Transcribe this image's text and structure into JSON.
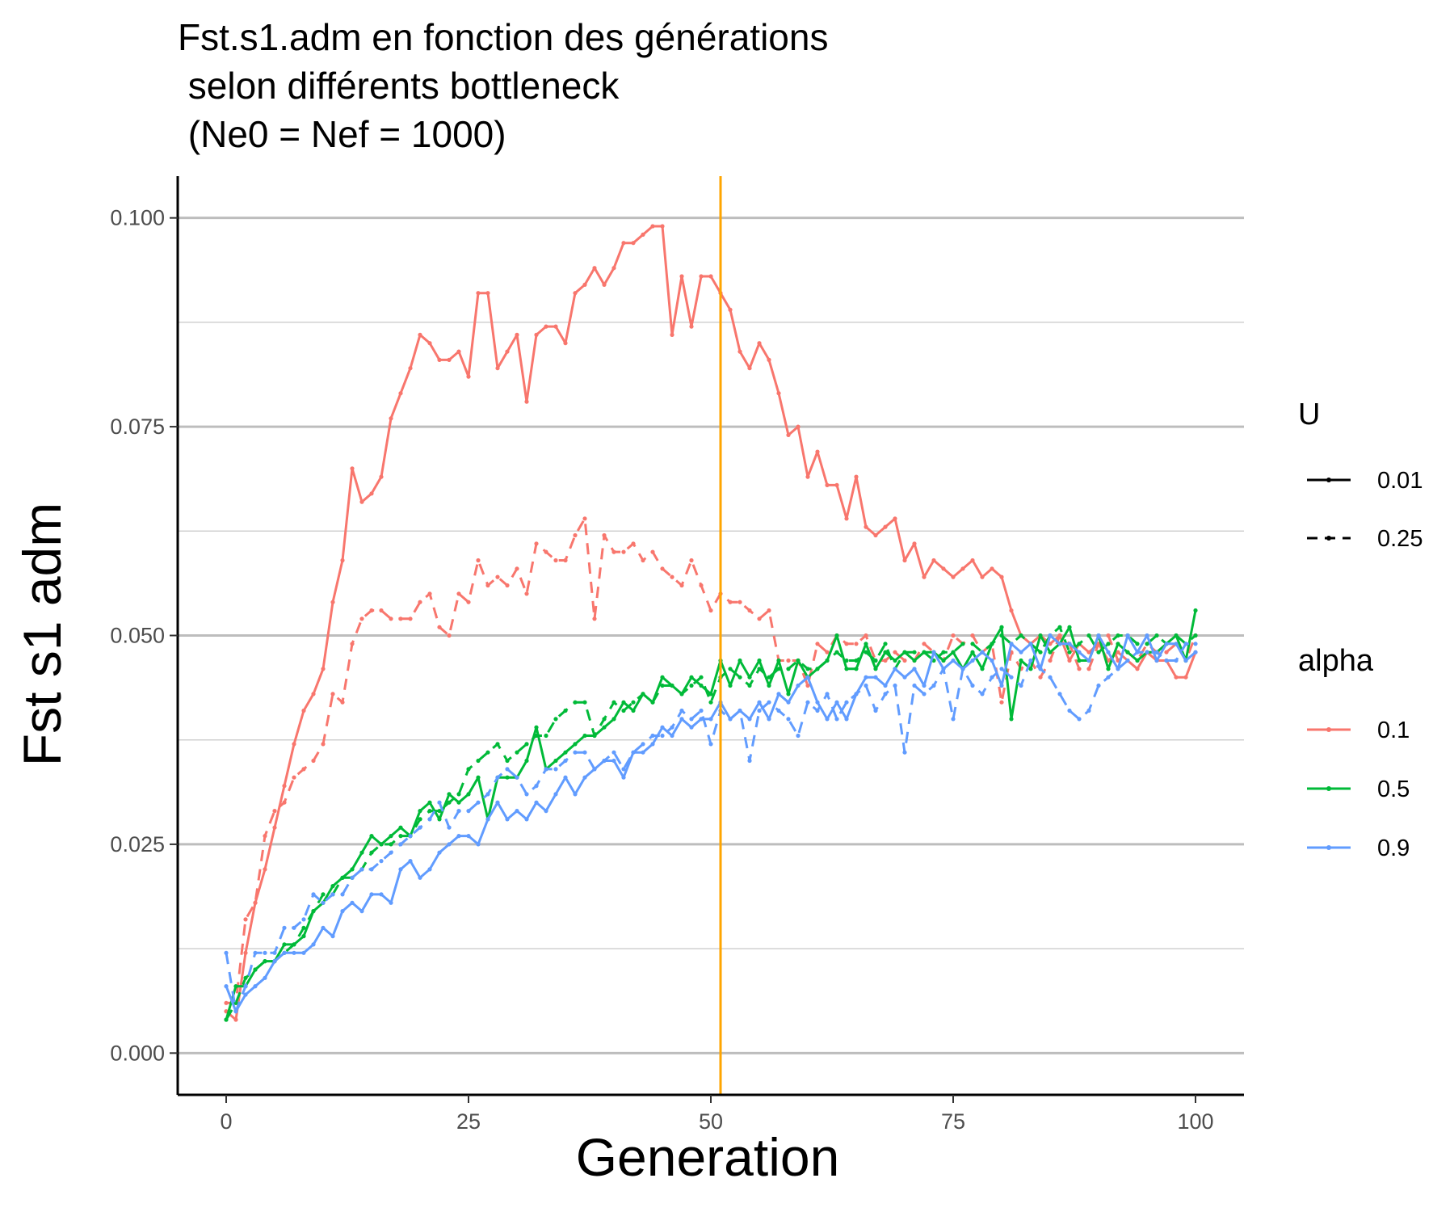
{
  "chart_data": {
    "type": "line",
    "title": [
      "Fst.s1.adm en fonction des générations",
      " selon différents bottleneck",
      " (Ne0 = Nef = 1000)"
    ],
    "xlabel": "Generation",
    "ylabel": "Fst s1 adm",
    "xlim": [
      -5,
      105
    ],
    "ylim": [
      -0.005,
      0.105
    ],
    "x_ticks": [
      0,
      25,
      50,
      75,
      100
    ],
    "x_tick_labels": [
      "0",
      "25",
      "50",
      "75",
      "100"
    ],
    "y_ticks": [
      0,
      0.025,
      0.05,
      0.075,
      0.1
    ],
    "y_tick_labels": [
      "0.000",
      "0.025",
      "0.050",
      "0.075",
      "0.100"
    ],
    "y_minor_ticks": [
      0.0125,
      0.0375,
      0.0625,
      0.0875
    ],
    "grid": "horizontal",
    "vline": {
      "x": 51,
      "color": "#FFA500"
    },
    "legend_placement": "right",
    "legend_linetype": {
      "title": "U",
      "entries": [
        {
          "label": "0.01",
          "dash": "solid"
        },
        {
          "label": "0.25",
          "dash": "dashed"
        }
      ]
    },
    "legend_color": {
      "title": "alpha",
      "entries": [
        {
          "label": "0.1",
          "color": "#F8766D"
        },
        {
          "label": "0.5",
          "color": "#00BA38"
        },
        {
          "label": "0.9",
          "color": "#619CFF"
        }
      ]
    },
    "x_start": 0,
    "x_step": 1,
    "series": [
      {
        "alpha": "0.1",
        "U": "0.01",
        "color": "#F8766D",
        "dash": "solid",
        "values": [
          0.005,
          0.004,
          0.012,
          0.018,
          0.022,
          0.027,
          0.032,
          0.037,
          0.041,
          0.043,
          0.046,
          0.054,
          0.059,
          0.07,
          0.066,
          0.067,
          0.069,
          0.076,
          0.079,
          0.082,
          0.086,
          0.085,
          0.083,
          0.083,
          0.084,
          0.081,
          0.091,
          0.091,
          0.082,
          0.084,
          0.086,
          0.078,
          0.086,
          0.087,
          0.087,
          0.085,
          0.091,
          0.092,
          0.094,
          0.092,
          0.094,
          0.097,
          0.097,
          0.098,
          0.099,
          0.099,
          0.086,
          0.093,
          0.087,
          0.093,
          0.093,
          0.091,
          0.089,
          0.084,
          0.082,
          0.085,
          0.083,
          0.079,
          0.074,
          0.075,
          0.069,
          0.072,
          0.068,
          0.068,
          0.064,
          0.069,
          0.063,
          0.062,
          0.063,
          0.064,
          0.059,
          0.061,
          0.057,
          0.059,
          0.058,
          0.057,
          0.058,
          0.059,
          0.057,
          0.058,
          0.057,
          0.053,
          0.05,
          0.049,
          0.05,
          0.049,
          0.05,
          0.047,
          0.049,
          0.048,
          0.049,
          0.047,
          0.048,
          0.047,
          0.046,
          0.048,
          0.047,
          0.047,
          0.045,
          0.045,
          0.048
        ]
      },
      {
        "alpha": "0.1",
        "U": "0.25",
        "color": "#F8766D",
        "dash": "dashed",
        "values": [
          0.006,
          0.006,
          0.016,
          0.018,
          0.026,
          0.029,
          0.03,
          0.033,
          0.034,
          0.035,
          0.037,
          0.043,
          0.042,
          0.049,
          0.052,
          0.053,
          0.053,
          0.052,
          0.052,
          0.052,
          0.054,
          0.055,
          0.051,
          0.05,
          0.055,
          0.054,
          0.059,
          0.056,
          0.057,
          0.056,
          0.058,
          0.055,
          0.061,
          0.06,
          0.059,
          0.059,
          0.062,
          0.064,
          0.052,
          0.062,
          0.06,
          0.06,
          0.061,
          0.059,
          0.06,
          0.058,
          0.057,
          0.056,
          0.059,
          0.056,
          0.053,
          0.055,
          0.054,
          0.054,
          0.053,
          0.052,
          0.053,
          0.047,
          0.047,
          0.047,
          0.044,
          0.049,
          0.048,
          0.05,
          0.049,
          0.049,
          0.05,
          0.047,
          0.047,
          0.048,
          0.047,
          0.047,
          0.049,
          0.048,
          0.047,
          0.05,
          0.049,
          0.05,
          0.048,
          0.049,
          0.042,
          0.048,
          0.046,
          0.047,
          0.045,
          0.047,
          0.05,
          0.049,
          0.046,
          0.046,
          0.049,
          0.05,
          0.047,
          0.048,
          0.047,
          0.049,
          0.048,
          0.048,
          0.049,
          0.047,
          0.05
        ]
      },
      {
        "alpha": "0.5",
        "U": "0.01",
        "color": "#00BA38",
        "dash": "solid",
        "values": [
          0.004,
          0.008,
          0.008,
          0.01,
          0.011,
          0.011,
          0.013,
          0.013,
          0.014,
          0.017,
          0.018,
          0.02,
          0.021,
          0.022,
          0.024,
          0.026,
          0.025,
          0.026,
          0.027,
          0.026,
          0.029,
          0.03,
          0.028,
          0.031,
          0.03,
          0.031,
          0.033,
          0.028,
          0.033,
          0.033,
          0.033,
          0.035,
          0.039,
          0.034,
          0.035,
          0.036,
          0.037,
          0.038,
          0.038,
          0.039,
          0.04,
          0.042,
          0.041,
          0.043,
          0.042,
          0.045,
          0.044,
          0.043,
          0.045,
          0.044,
          0.043,
          0.047,
          0.044,
          0.047,
          0.045,
          0.047,
          0.044,
          0.047,
          0.043,
          0.047,
          0.045,
          0.046,
          0.047,
          0.05,
          0.046,
          0.046,
          0.049,
          0.046,
          0.048,
          0.047,
          0.048,
          0.047,
          0.048,
          0.048,
          0.047,
          0.048,
          0.046,
          0.048,
          0.046,
          0.049,
          0.051,
          0.04,
          0.047,
          0.046,
          0.05,
          0.048,
          0.049,
          0.051,
          0.047,
          0.047,
          0.05,
          0.046,
          0.049,
          0.048,
          0.047,
          0.048,
          0.048,
          0.049,
          0.05,
          0.047,
          0.053
        ]
      },
      {
        "alpha": "0.5",
        "U": "0.25",
        "color": "#00BA38",
        "dash": "dashed",
        "values": [
          0.004,
          0.006,
          0.009,
          0.01,
          0.011,
          0.011,
          0.012,
          0.013,
          0.015,
          0.017,
          0.019,
          0.019,
          0.021,
          0.021,
          0.022,
          0.024,
          0.025,
          0.025,
          0.026,
          0.026,
          0.028,
          0.029,
          0.029,
          0.03,
          0.031,
          0.034,
          0.035,
          0.036,
          0.037,
          0.035,
          0.036,
          0.037,
          0.038,
          0.038,
          0.04,
          0.041,
          0.042,
          0.042,
          0.038,
          0.04,
          0.042,
          0.041,
          0.042,
          0.043,
          0.042,
          0.044,
          0.044,
          0.043,
          0.044,
          0.045,
          0.042,
          0.045,
          0.046,
          0.045,
          0.044,
          0.046,
          0.045,
          0.046,
          0.046,
          0.047,
          0.046,
          0.046,
          0.047,
          0.048,
          0.047,
          0.047,
          0.048,
          0.047,
          0.049,
          0.046,
          0.048,
          0.048,
          0.048,
          0.047,
          0.048,
          0.048,
          0.049,
          0.049,
          0.048,
          0.049,
          0.05,
          0.049,
          0.05,
          0.049,
          0.048,
          0.05,
          0.051,
          0.048,
          0.049,
          0.05,
          0.048,
          0.049,
          0.05,
          0.05,
          0.049,
          0.049,
          0.05,
          0.049,
          0.05,
          0.049,
          0.05
        ]
      },
      {
        "alpha": "0.9",
        "U": "0.01",
        "color": "#619CFF",
        "dash": "solid",
        "values": [
          0.008,
          0.005,
          0.007,
          0.008,
          0.009,
          0.011,
          0.012,
          0.012,
          0.012,
          0.013,
          0.015,
          0.014,
          0.017,
          0.018,
          0.017,
          0.019,
          0.019,
          0.018,
          0.022,
          0.023,
          0.021,
          0.022,
          0.024,
          0.025,
          0.026,
          0.026,
          0.025,
          0.028,
          0.03,
          0.028,
          0.029,
          0.028,
          0.03,
          0.029,
          0.031,
          0.033,
          0.031,
          0.033,
          0.034,
          0.035,
          0.035,
          0.033,
          0.036,
          0.036,
          0.037,
          0.039,
          0.038,
          0.04,
          0.039,
          0.04,
          0.04,
          0.042,
          0.04,
          0.041,
          0.04,
          0.042,
          0.04,
          0.043,
          0.042,
          0.044,
          0.045,
          0.042,
          0.04,
          0.042,
          0.04,
          0.043,
          0.045,
          0.045,
          0.044,
          0.046,
          0.045,
          0.046,
          0.044,
          0.048,
          0.046,
          0.047,
          0.046,
          0.047,
          0.048,
          0.047,
          0.044,
          0.049,
          0.048,
          0.049,
          0.046,
          0.05,
          0.049,
          0.049,
          0.048,
          0.047,
          0.05,
          0.048,
          0.046,
          0.05,
          0.048,
          0.05,
          0.047,
          0.049,
          0.049,
          0.047,
          0.048
        ]
      },
      {
        "alpha": "0.9",
        "U": "0.25",
        "color": "#619CFF",
        "dash": "dashed",
        "values": [
          0.012,
          0.005,
          0.008,
          0.012,
          0.012,
          0.012,
          0.015,
          0.015,
          0.016,
          0.019,
          0.018,
          0.019,
          0.019,
          0.021,
          0.022,
          0.022,
          0.023,
          0.024,
          0.025,
          0.026,
          0.027,
          0.028,
          0.03,
          0.027,
          0.029,
          0.029,
          0.03,
          0.031,
          0.033,
          0.034,
          0.033,
          0.031,
          0.032,
          0.034,
          0.034,
          0.035,
          0.036,
          0.036,
          0.034,
          0.035,
          0.036,
          0.034,
          0.036,
          0.037,
          0.038,
          0.038,
          0.039,
          0.041,
          0.04,
          0.041,
          0.037,
          0.041,
          0.04,
          0.041,
          0.035,
          0.041,
          0.042,
          0.041,
          0.04,
          0.038,
          0.042,
          0.041,
          0.043,
          0.04,
          0.042,
          0.043,
          0.044,
          0.041,
          0.043,
          0.044,
          0.036,
          0.044,
          0.043,
          0.044,
          0.046,
          0.04,
          0.046,
          0.044,
          0.043,
          0.045,
          0.046,
          0.045,
          0.044,
          0.047,
          0.046,
          0.045,
          0.043,
          0.041,
          0.04,
          0.041,
          0.044,
          0.045,
          0.046,
          0.047,
          0.048,
          0.048,
          0.048,
          0.047,
          0.047,
          0.049,
          0.049
        ]
      }
    ]
  }
}
